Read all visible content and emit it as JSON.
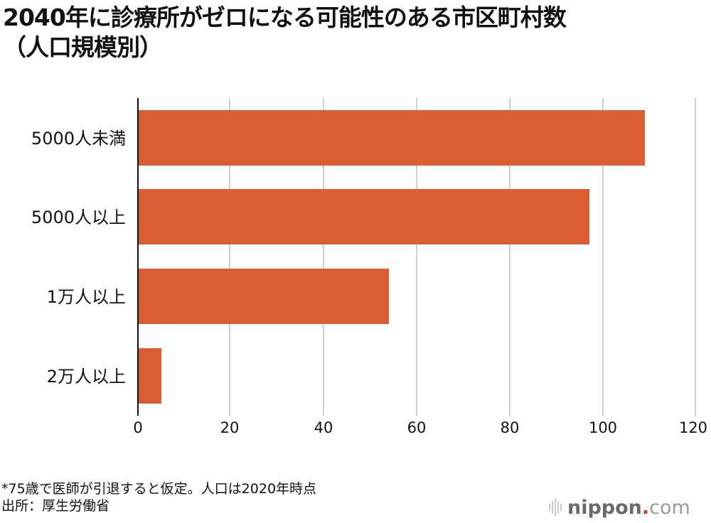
{
  "header": {
    "title_line1": "2040年に診療所がゼロになる可能性のある市区町村数",
    "title_line2": "（人口規模別）"
  },
  "chart_data": {
    "type": "bar",
    "orientation": "horizontal",
    "title": "2040年に診療所がゼロになる可能性のある市区町村数（人口規模別）",
    "categories": [
      "5000人未満",
      "5000人以上",
      "1万人以上",
      "2万人以上"
    ],
    "values": [
      109,
      97,
      54,
      5
    ],
    "xlabel": "",
    "ylabel": "",
    "xlim": [
      0,
      120
    ],
    "xticks": [
      "0",
      "20",
      "40",
      "60",
      "80",
      "100",
      "120"
    ],
    "grid": true,
    "legend": null,
    "bar_color": "#D95F33"
  },
  "footer": {
    "note": "*75歳で医師が引退すると仮定。人口は2020年時点",
    "source": "出所：厚生労働省"
  },
  "logo": {
    "name": "nippon",
    "dot": ".",
    "tld": "com"
  },
  "colors": {
    "bar": "#D95F33",
    "grid": "#cfcfcf",
    "axis": "#111111",
    "logo_dot": "#e4322b"
  }
}
